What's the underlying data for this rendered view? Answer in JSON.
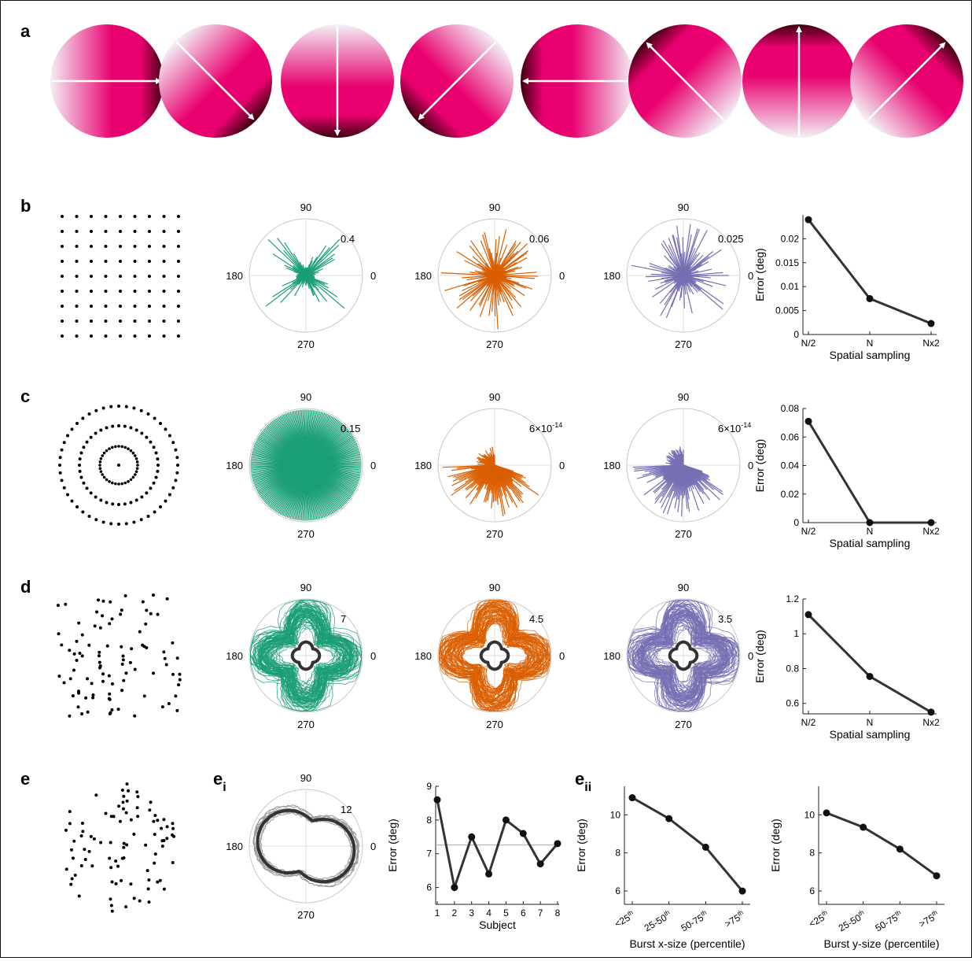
{
  "panels": {
    "a": "a",
    "b": "b",
    "c": "c",
    "d": "d",
    "e": "e",
    "ei_main": "e",
    "ei_sub": "i",
    "eii_main": "e",
    "eii_sub": "ii"
  },
  "gradient_colors": {
    "light": "#f3f0f6",
    "mid": "#e8006e",
    "dark": "#3d0010",
    "arrow": "#ffffff"
  },
  "gradient_discs": [
    {
      "label": "disc-0deg",
      "angle_deg": 0
    },
    {
      "label": "disc-315deg",
      "angle_deg": 315
    },
    {
      "label": "disc-270deg",
      "angle_deg": 270
    },
    {
      "label": "disc-225deg",
      "angle_deg": 225
    },
    {
      "label": "disc-180deg",
      "angle_deg": 180
    },
    {
      "label": "disc-135deg",
      "angle_deg": 135
    },
    {
      "label": "disc-90deg",
      "angle_deg": 90
    },
    {
      "label": "disc-45deg",
      "angle_deg": 45
    }
  ],
  "series_colors": {
    "green": "#1a9e77",
    "orange": "#d95f02",
    "purple": "#7570b3",
    "dark": "#333333"
  },
  "polar_angle_labels": {
    "top": "90",
    "left": "180",
    "right": "0",
    "bottom": "270"
  },
  "rows": {
    "b": {
      "layout": "grid",
      "polar": [
        {
          "color": "green",
          "rmax_label": "0.4",
          "style": "spiky"
        },
        {
          "color": "orange",
          "rmax_label": "0.06",
          "style": "dense"
        },
        {
          "color": "purple",
          "rmax_label": "0.025",
          "style": "dense"
        }
      ]
    },
    "c": {
      "layout": "circular",
      "polar": [
        {
          "color": "green",
          "rmax_label": "0.15",
          "style": "full"
        },
        {
          "color": "orange",
          "rmax_label": "6×10",
          "rmax_exp": "-14",
          "style": "lowerright"
        },
        {
          "color": "purple",
          "rmax_label": "6×10",
          "rmax_exp": "-14",
          "style": "lowerright"
        }
      ]
    },
    "d": {
      "layout": "random",
      "polar": [
        {
          "color": "green",
          "rmax_label": "7",
          "style": "loops"
        },
        {
          "color": "orange",
          "rmax_label": "4.5",
          "style": "loops"
        },
        {
          "color": "purple",
          "rmax_label": "3.5",
          "style": "loops"
        }
      ]
    }
  },
  "chart_data": [
    {
      "type": "line",
      "name": "error-b",
      "categories": [
        "N/2",
        "N",
        "Nx2"
      ],
      "values": [
        0.024,
        0.0075,
        0.0023
      ],
      "xlabel": "Spatial sampling",
      "ylabel": "Error (deg)",
      "ylim": [
        0,
        0.025
      ],
      "yticks": [
        0,
        0.005,
        0.01,
        0.015,
        0.02
      ]
    },
    {
      "type": "line",
      "name": "error-c",
      "categories": [
        "N/2",
        "N",
        "Nx2"
      ],
      "values": [
        0.071,
        0.0,
        0.0
      ],
      "xlabel": "Spatial sampling",
      "ylabel": "Error (deg)",
      "ylim": [
        0,
        0.08
      ],
      "yticks": [
        0,
        0.02,
        0.04,
        0.06,
        0.08
      ]
    },
    {
      "type": "line",
      "name": "error-d",
      "categories": [
        "N/2",
        "N",
        "Nx2"
      ],
      "values": [
        1.11,
        0.755,
        0.55
      ],
      "xlabel": "Spatial sampling",
      "ylabel": "Error (deg)",
      "ylim": [
        0.54,
        1.2
      ],
      "yticks": [
        0.6,
        0.8,
        1,
        1.2
      ]
    },
    {
      "type": "line",
      "name": "error-subject",
      "categories": [
        "1",
        "2",
        "3",
        "4",
        "5",
        "6",
        "7",
        "8"
      ],
      "values": [
        8.6,
        6.0,
        7.5,
        6.4,
        8.0,
        7.6,
        6.7,
        7.3
      ],
      "mean_line": 7.26,
      "xlabel": "Subject",
      "ylabel": "Error (deg)",
      "ylim": [
        5.5,
        9
      ],
      "yticks": [
        6,
        7,
        8,
        9
      ]
    },
    {
      "type": "line",
      "name": "error-x-size",
      "categories": [
        "<25",
        "25-50",
        "50-75",
        ">75"
      ],
      "category_sup": "th",
      "values": [
        10.9,
        9.8,
        8.3,
        6.0
      ],
      "xlabel": "Burst x-size (percentile)",
      "ylabel": "Error (deg)",
      "ylim": [
        5.3,
        11.5
      ],
      "yticks": [
        6,
        8,
        10
      ]
    },
    {
      "type": "line",
      "name": "error-y-size",
      "categories": [
        "<25",
        "25-50",
        "50-75",
        ">75"
      ],
      "category_sup": "th",
      "values": [
        10.1,
        9.35,
        8.2,
        6.8
      ],
      "xlabel": "Burst y-size (percentile)",
      "ylabel": "Error (deg)",
      "ylim": [
        5.3,
        11.5
      ],
      "yticks": [
        6,
        8,
        10
      ]
    },
    {
      "type": "polar",
      "name": "polar-ei",
      "rmax_label": "12",
      "angle_labels": [
        "90",
        "180",
        "0",
        "270"
      ]
    }
  ]
}
